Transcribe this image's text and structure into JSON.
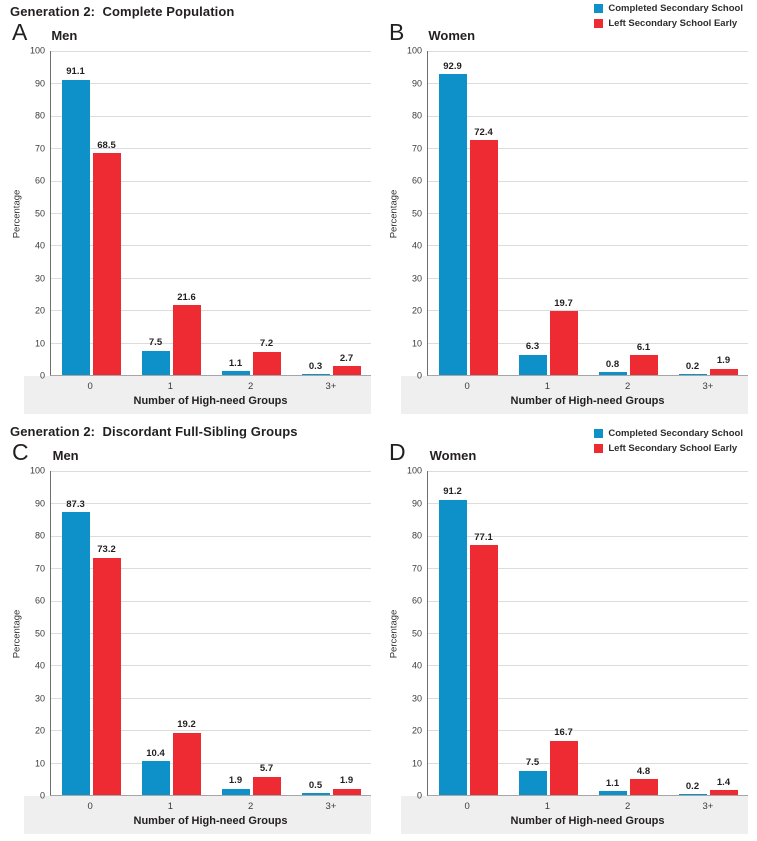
{
  "page": {
    "sections": [
      {
        "title": "Generation 2:  Complete Population",
        "legend": [
          {
            "label": "Completed Secondary School",
            "color": "#0e90c9"
          },
          {
            "label": "Left Secondary School Early",
            "color": "#ee2b33"
          }
        ],
        "panels": [
          {
            "letter": "A",
            "title": "Men"
          },
          {
            "letter": "B",
            "title": "Women"
          }
        ]
      },
      {
        "title": "Generation 2:  Discordant Full-Sibling Groups",
        "legend": [
          {
            "label": "Completed Secondary School",
            "color": "#0e90c9"
          },
          {
            "label": "Left Secondary School Early",
            "color": "#ee2b33"
          }
        ],
        "panels": [
          {
            "letter": "C",
            "title": "Men"
          },
          {
            "letter": "D",
            "title": "Women"
          }
        ]
      }
    ]
  },
  "chart_data": [
    {
      "type": "bar",
      "panel": "A",
      "title": "Men",
      "section_title": "Generation 2: Complete Population",
      "categories": [
        "0",
        "1",
        "2",
        "3+"
      ],
      "series": [
        {
          "name": "Completed Secondary School",
          "color": "#0e90c9",
          "values": [
            91.1,
            7.5,
            1.1,
            0.3
          ]
        },
        {
          "name": "Left Secondary School Early",
          "color": "#ee2b33",
          "values": [
            68.5,
            21.6,
            7.2,
            2.7
          ]
        }
      ],
      "xlabel": "Number of High-need Groups",
      "ylabel": "Percentage",
      "ylim": [
        0,
        100
      ],
      "yticks": [
        0,
        10,
        20,
        30,
        40,
        50,
        60,
        70,
        80,
        90,
        100
      ],
      "grid": true,
      "legend_position": "top-right"
    },
    {
      "type": "bar",
      "panel": "B",
      "title": "Women",
      "section_title": "Generation 2: Complete Population",
      "categories": [
        "0",
        "1",
        "2",
        "3+"
      ],
      "series": [
        {
          "name": "Completed Secondary School",
          "color": "#0e90c9",
          "values": [
            92.9,
            6.3,
            0.8,
            0.2
          ]
        },
        {
          "name": "Left Secondary School Early",
          "color": "#ee2b33",
          "values": [
            72.4,
            19.7,
            6.1,
            1.9
          ]
        }
      ],
      "xlabel": "Number of High-need Groups",
      "ylabel": "Percentage",
      "ylim": [
        0,
        100
      ],
      "yticks": [
        0,
        10,
        20,
        30,
        40,
        50,
        60,
        70,
        80,
        90,
        100
      ],
      "grid": true,
      "legend_position": "top-right"
    },
    {
      "type": "bar",
      "panel": "C",
      "title": "Men",
      "section_title": "Generation 2: Discordant Full-Sibling Groups",
      "categories": [
        "0",
        "1",
        "2",
        "3+"
      ],
      "series": [
        {
          "name": "Completed Secondary School",
          "color": "#0e90c9",
          "values": [
            87.3,
            10.4,
            1.9,
            0.5
          ]
        },
        {
          "name": "Left Secondary School Early",
          "color": "#ee2b33",
          "values": [
            73.2,
            19.2,
            5.7,
            1.9
          ]
        }
      ],
      "xlabel": "Number of High-need Groups",
      "ylabel": "Percentage",
      "ylim": [
        0,
        100
      ],
      "yticks": [
        0,
        10,
        20,
        30,
        40,
        50,
        60,
        70,
        80,
        90,
        100
      ],
      "grid": true,
      "legend_position": "top-right"
    },
    {
      "type": "bar",
      "panel": "D",
      "title": "Women",
      "section_title": "Generation 2: Discordant Full-Sibling Groups",
      "categories": [
        "0",
        "1",
        "2",
        "3+"
      ],
      "series": [
        {
          "name": "Completed Secondary School",
          "color": "#0e90c9",
          "values": [
            91.2,
            7.5,
            1.1,
            0.2
          ]
        },
        {
          "name": "Left Secondary School Early",
          "color": "#ee2b33",
          "values": [
            77.1,
            16.7,
            4.8,
            1.4
          ]
        }
      ],
      "xlabel": "Number of High-need Groups",
      "ylabel": "Percentage",
      "ylim": [
        0,
        100
      ],
      "yticks": [
        0,
        10,
        20,
        30,
        40,
        50,
        60,
        70,
        80,
        90,
        100
      ],
      "grid": true,
      "legend_position": "top-right"
    }
  ]
}
